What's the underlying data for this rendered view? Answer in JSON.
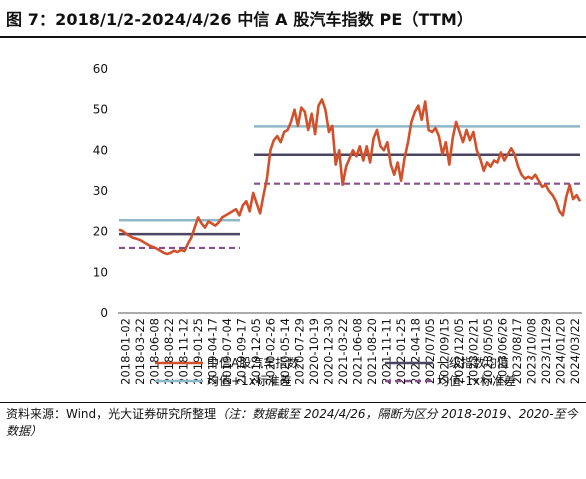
{
  "title": "图 7：2018/1/2-2024/4/26 中信 A 股汽车指数 PE（TTM）",
  "source": "资料来源：Wind，光大证券研究所整理",
  "note": "（注：数据截至 2024/4/26，隔断为区分 2018-2019、2020-至今数据）",
  "colors": {
    "index": "#d2502a",
    "mean": "#4a4560",
    "plus": "#8fb8c8",
    "minus": "#8a4c8e"
  },
  "chart_data": {
    "type": "line",
    "ylim": [
      0,
      60
    ],
    "yticks": [
      0,
      10,
      20,
      30,
      40,
      50,
      60
    ],
    "xlabels": [
      "2018-01-02",
      "2018-03-22",
      "2018-06-08",
      "2018-08-22",
      "2018-11-12",
      "2019-01-25",
      "2019-04-17",
      "2019-07-04",
      "2019-09-17",
      "2019-12-05",
      "2020-02-26",
      "2020-05-14",
      "2020-07-29",
      "2020-10-19",
      "2020-12-30",
      "2021-03-22",
      "2021-06-08",
      "2021-08-20",
      "2021-11-11",
      "2022-01-25",
      "2022-04-18",
      "2022/07/05",
      "2022/09/15",
      "2022/12/05",
      "2023/02/21",
      "2023/05/05",
      "2023/06/26",
      "2023/08/17",
      "2023/10/08",
      "2023/11/29",
      "2024/01/20",
      "2024/03/22"
    ],
    "legend": [
      "中信A股汽车指数",
      "一级指数均值",
      "均值+1x标准差",
      "均值-1x标准差"
    ],
    "series": [
      {
        "name": "中信A股汽车指数",
        "values": [
          20.5,
          20.2,
          19.5,
          19.0,
          18.5,
          18.3,
          18.0,
          17.5,
          17.0,
          16.5,
          16.2,
          15.8,
          15.3,
          14.8,
          14.5,
          14.8,
          15.3,
          15.0,
          15.5,
          15.2,
          17.0,
          18.5,
          21.0,
          23.5,
          22.0,
          21.0,
          22.5,
          22.0,
          21.5,
          22.3,
          23.5,
          24.0,
          24.5,
          25.0,
          25.5,
          24.0,
          26.5,
          27.5,
          25.0,
          29.5,
          27.0,
          24.5,
          29.0,
          33.0,
          40.0,
          42.5,
          43.5,
          42.0,
          44.5,
          45.0,
          47.0,
          50.0,
          46.0,
          50.5,
          49.5,
          45.0,
          49.0,
          44.0,
          51.0,
          52.5,
          50.0,
          44.5,
          46.0,
          36.5,
          40.0,
          31.5,
          36.0,
          38.0,
          40.0,
          38.5,
          41.0,
          37.5,
          41.0,
          37.0,
          43.0,
          45.0,
          41.0,
          40.0,
          42.0,
          36.5,
          34.0,
          37.0,
          32.5,
          38.0,
          42.0,
          47.0,
          49.5,
          51.0,
          47.5,
          52.0,
          45.0,
          44.5,
          45.5,
          43.5,
          39.0,
          42.0,
          36.5,
          43.0,
          47.0,
          44.5,
          42.0,
          45.0,
          42.5,
          44.5,
          40.0,
          38.0,
          35.0,
          37.0,
          36.0,
          37.5,
          37.0,
          39.5,
          37.5,
          39.0,
          40.5,
          39.0,
          36.0,
          34.0,
          33.0,
          33.5,
          33.0,
          34.0,
          32.5,
          31.0,
          31.5,
          30.0,
          29.0,
          27.5,
          25.0,
          24.0,
          28.5,
          31.5,
          28.0,
          29.0,
          27.5
        ]
      },
      {
        "name": "一级指数均值",
        "segments": [
          {
            "value": 19.4
          },
          {
            "value": 38.9
          }
        ]
      },
      {
        "name": "均值+1x标准差",
        "segments": [
          {
            "value": 22.8
          },
          {
            "value": 45.9
          }
        ]
      },
      {
        "name": "均值-1x标准差",
        "segments": [
          {
            "value": 16.0
          },
          {
            "value": 31.8
          }
        ]
      }
    ]
  }
}
